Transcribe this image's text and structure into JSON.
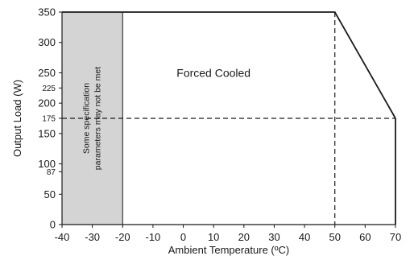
{
  "chart_data": {
    "type": "line",
    "xlabel": "Ambient Temperature (ºC)",
    "ylabel": "Output Load (W)",
    "xlim": [
      -40,
      70
    ],
    "ylim": [
      0,
      350
    ],
    "x_ticks": [
      -40,
      -30,
      -20,
      -10,
      0,
      10,
      20,
      30,
      40,
      50,
      60,
      70
    ],
    "y_ticks_major": [
      0,
      50,
      100,
      150,
      200,
      250,
      300,
      350
    ],
    "y_ticks_minor": [
      87,
      175,
      225
    ],
    "grid": false,
    "series": [
      {
        "x": [
          -40,
          50,
          70
        ],
        "y": [
          350,
          350,
          175
        ]
      }
    ],
    "reference_lines": {
      "horizontal_y": 175,
      "vertical_x": 50
    },
    "shaded_region": {
      "x_range": [
        -40,
        -20
      ],
      "color": "#d4d4d4",
      "label_lines": [
        "Some specification",
        "parameters may not be met"
      ]
    },
    "annotations": [
      {
        "text": "Forced Cooled",
        "x": 10,
        "y": 250
      }
    ]
  }
}
